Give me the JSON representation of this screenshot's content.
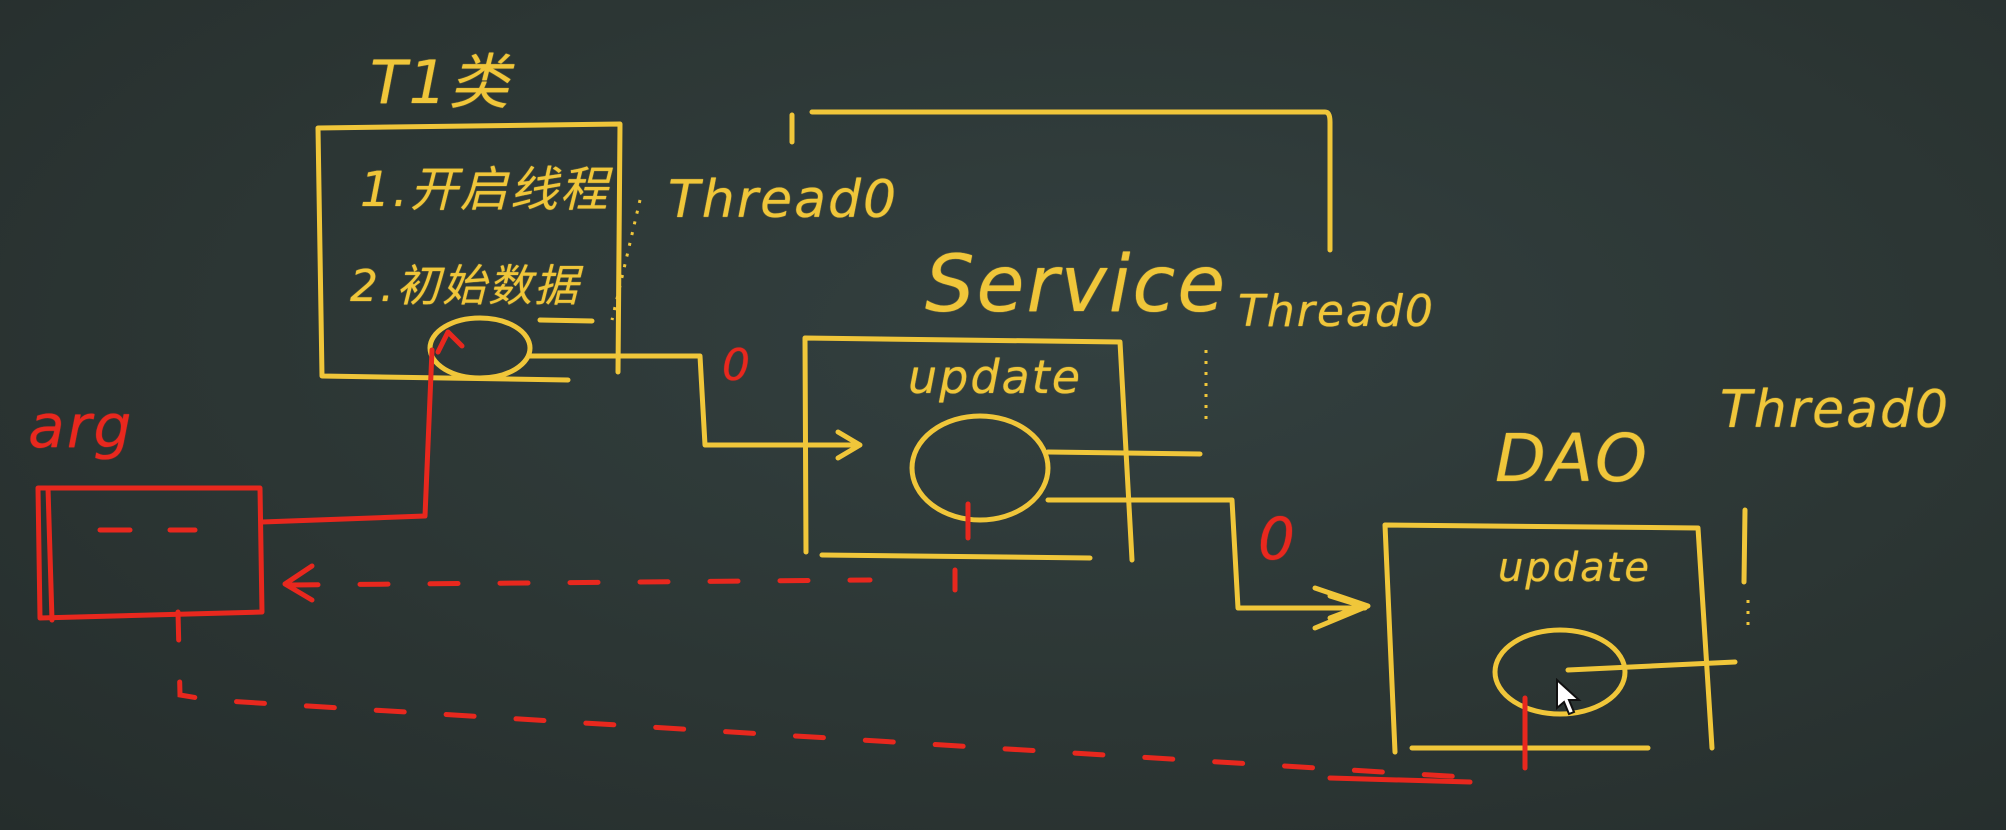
{
  "colors": {
    "board": "#2b3432",
    "chalk_yellow": "#f0c63a",
    "chalk_red": "#e8281e"
  },
  "labels": {
    "t1_title": "T1类",
    "t1_line1": "1.开启线程",
    "t1_line2": "2.初始数据",
    "thread0_a": "Thread0",
    "service_title": "Service",
    "thread0_b": "Thread0",
    "update_service": "update",
    "dao_title": "DAO",
    "thread0_c": "Thread0",
    "update_dao": "update",
    "arg": "arg",
    "marker_0_a": "0",
    "marker_0_b": "0"
  }
}
